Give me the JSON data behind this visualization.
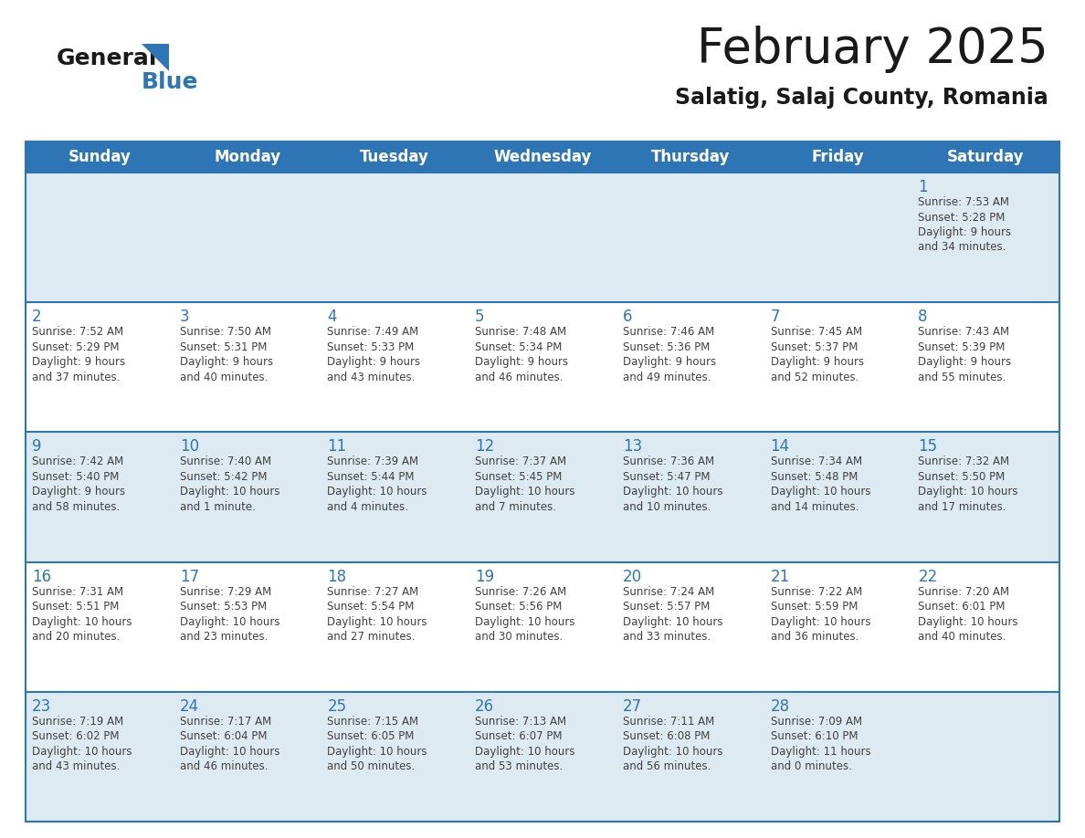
{
  "title": "February 2025",
  "subtitle": "Salatig, Salaj County, Romania",
  "header_bg": "#2E75B6",
  "header_text": "#FFFFFF",
  "weekdays": [
    "Sunday",
    "Monday",
    "Tuesday",
    "Wednesday",
    "Thursday",
    "Friday",
    "Saturday"
  ],
  "alt_row_bg": "#DEEAF1",
  "white_bg": "#FFFFFF",
  "border_color": "#2E75B6",
  "day_number_color": "#2E75B6",
  "info_text_color": "#404040",
  "calendar": [
    [
      {
        "day": null,
        "info": ""
      },
      {
        "day": null,
        "info": ""
      },
      {
        "day": null,
        "info": ""
      },
      {
        "day": null,
        "info": ""
      },
      {
        "day": null,
        "info": ""
      },
      {
        "day": null,
        "info": ""
      },
      {
        "day": 1,
        "info": "Sunrise: 7:53 AM\nSunset: 5:28 PM\nDaylight: 9 hours\nand 34 minutes."
      }
    ],
    [
      {
        "day": 2,
        "info": "Sunrise: 7:52 AM\nSunset: 5:29 PM\nDaylight: 9 hours\nand 37 minutes."
      },
      {
        "day": 3,
        "info": "Sunrise: 7:50 AM\nSunset: 5:31 PM\nDaylight: 9 hours\nand 40 minutes."
      },
      {
        "day": 4,
        "info": "Sunrise: 7:49 AM\nSunset: 5:33 PM\nDaylight: 9 hours\nand 43 minutes."
      },
      {
        "day": 5,
        "info": "Sunrise: 7:48 AM\nSunset: 5:34 PM\nDaylight: 9 hours\nand 46 minutes."
      },
      {
        "day": 6,
        "info": "Sunrise: 7:46 AM\nSunset: 5:36 PM\nDaylight: 9 hours\nand 49 minutes."
      },
      {
        "day": 7,
        "info": "Sunrise: 7:45 AM\nSunset: 5:37 PM\nDaylight: 9 hours\nand 52 minutes."
      },
      {
        "day": 8,
        "info": "Sunrise: 7:43 AM\nSunset: 5:39 PM\nDaylight: 9 hours\nand 55 minutes."
      }
    ],
    [
      {
        "day": 9,
        "info": "Sunrise: 7:42 AM\nSunset: 5:40 PM\nDaylight: 9 hours\nand 58 minutes."
      },
      {
        "day": 10,
        "info": "Sunrise: 7:40 AM\nSunset: 5:42 PM\nDaylight: 10 hours\nand 1 minute."
      },
      {
        "day": 11,
        "info": "Sunrise: 7:39 AM\nSunset: 5:44 PM\nDaylight: 10 hours\nand 4 minutes."
      },
      {
        "day": 12,
        "info": "Sunrise: 7:37 AM\nSunset: 5:45 PM\nDaylight: 10 hours\nand 7 minutes."
      },
      {
        "day": 13,
        "info": "Sunrise: 7:36 AM\nSunset: 5:47 PM\nDaylight: 10 hours\nand 10 minutes."
      },
      {
        "day": 14,
        "info": "Sunrise: 7:34 AM\nSunset: 5:48 PM\nDaylight: 10 hours\nand 14 minutes."
      },
      {
        "day": 15,
        "info": "Sunrise: 7:32 AM\nSunset: 5:50 PM\nDaylight: 10 hours\nand 17 minutes."
      }
    ],
    [
      {
        "day": 16,
        "info": "Sunrise: 7:31 AM\nSunset: 5:51 PM\nDaylight: 10 hours\nand 20 minutes."
      },
      {
        "day": 17,
        "info": "Sunrise: 7:29 AM\nSunset: 5:53 PM\nDaylight: 10 hours\nand 23 minutes."
      },
      {
        "day": 18,
        "info": "Sunrise: 7:27 AM\nSunset: 5:54 PM\nDaylight: 10 hours\nand 27 minutes."
      },
      {
        "day": 19,
        "info": "Sunrise: 7:26 AM\nSunset: 5:56 PM\nDaylight: 10 hours\nand 30 minutes."
      },
      {
        "day": 20,
        "info": "Sunrise: 7:24 AM\nSunset: 5:57 PM\nDaylight: 10 hours\nand 33 minutes."
      },
      {
        "day": 21,
        "info": "Sunrise: 7:22 AM\nSunset: 5:59 PM\nDaylight: 10 hours\nand 36 minutes."
      },
      {
        "day": 22,
        "info": "Sunrise: 7:20 AM\nSunset: 6:01 PM\nDaylight: 10 hours\nand 40 minutes."
      }
    ],
    [
      {
        "day": 23,
        "info": "Sunrise: 7:19 AM\nSunset: 6:02 PM\nDaylight: 10 hours\nand 43 minutes."
      },
      {
        "day": 24,
        "info": "Sunrise: 7:17 AM\nSunset: 6:04 PM\nDaylight: 10 hours\nand 46 minutes."
      },
      {
        "day": 25,
        "info": "Sunrise: 7:15 AM\nSunset: 6:05 PM\nDaylight: 10 hours\nand 50 minutes."
      },
      {
        "day": 26,
        "info": "Sunrise: 7:13 AM\nSunset: 6:07 PM\nDaylight: 10 hours\nand 53 minutes."
      },
      {
        "day": 27,
        "info": "Sunrise: 7:11 AM\nSunset: 6:08 PM\nDaylight: 10 hours\nand 56 minutes."
      },
      {
        "day": 28,
        "info": "Sunrise: 7:09 AM\nSunset: 6:10 PM\nDaylight: 11 hours\nand 0 minutes."
      },
      {
        "day": null,
        "info": ""
      }
    ]
  ],
  "logo_general_color": "#1a1a1a",
  "logo_blue_color": "#2E75B6",
  "title_fontsize": 38,
  "subtitle_fontsize": 17,
  "header_fontsize": 12,
  "day_num_fontsize": 12,
  "info_fontsize": 8.5
}
